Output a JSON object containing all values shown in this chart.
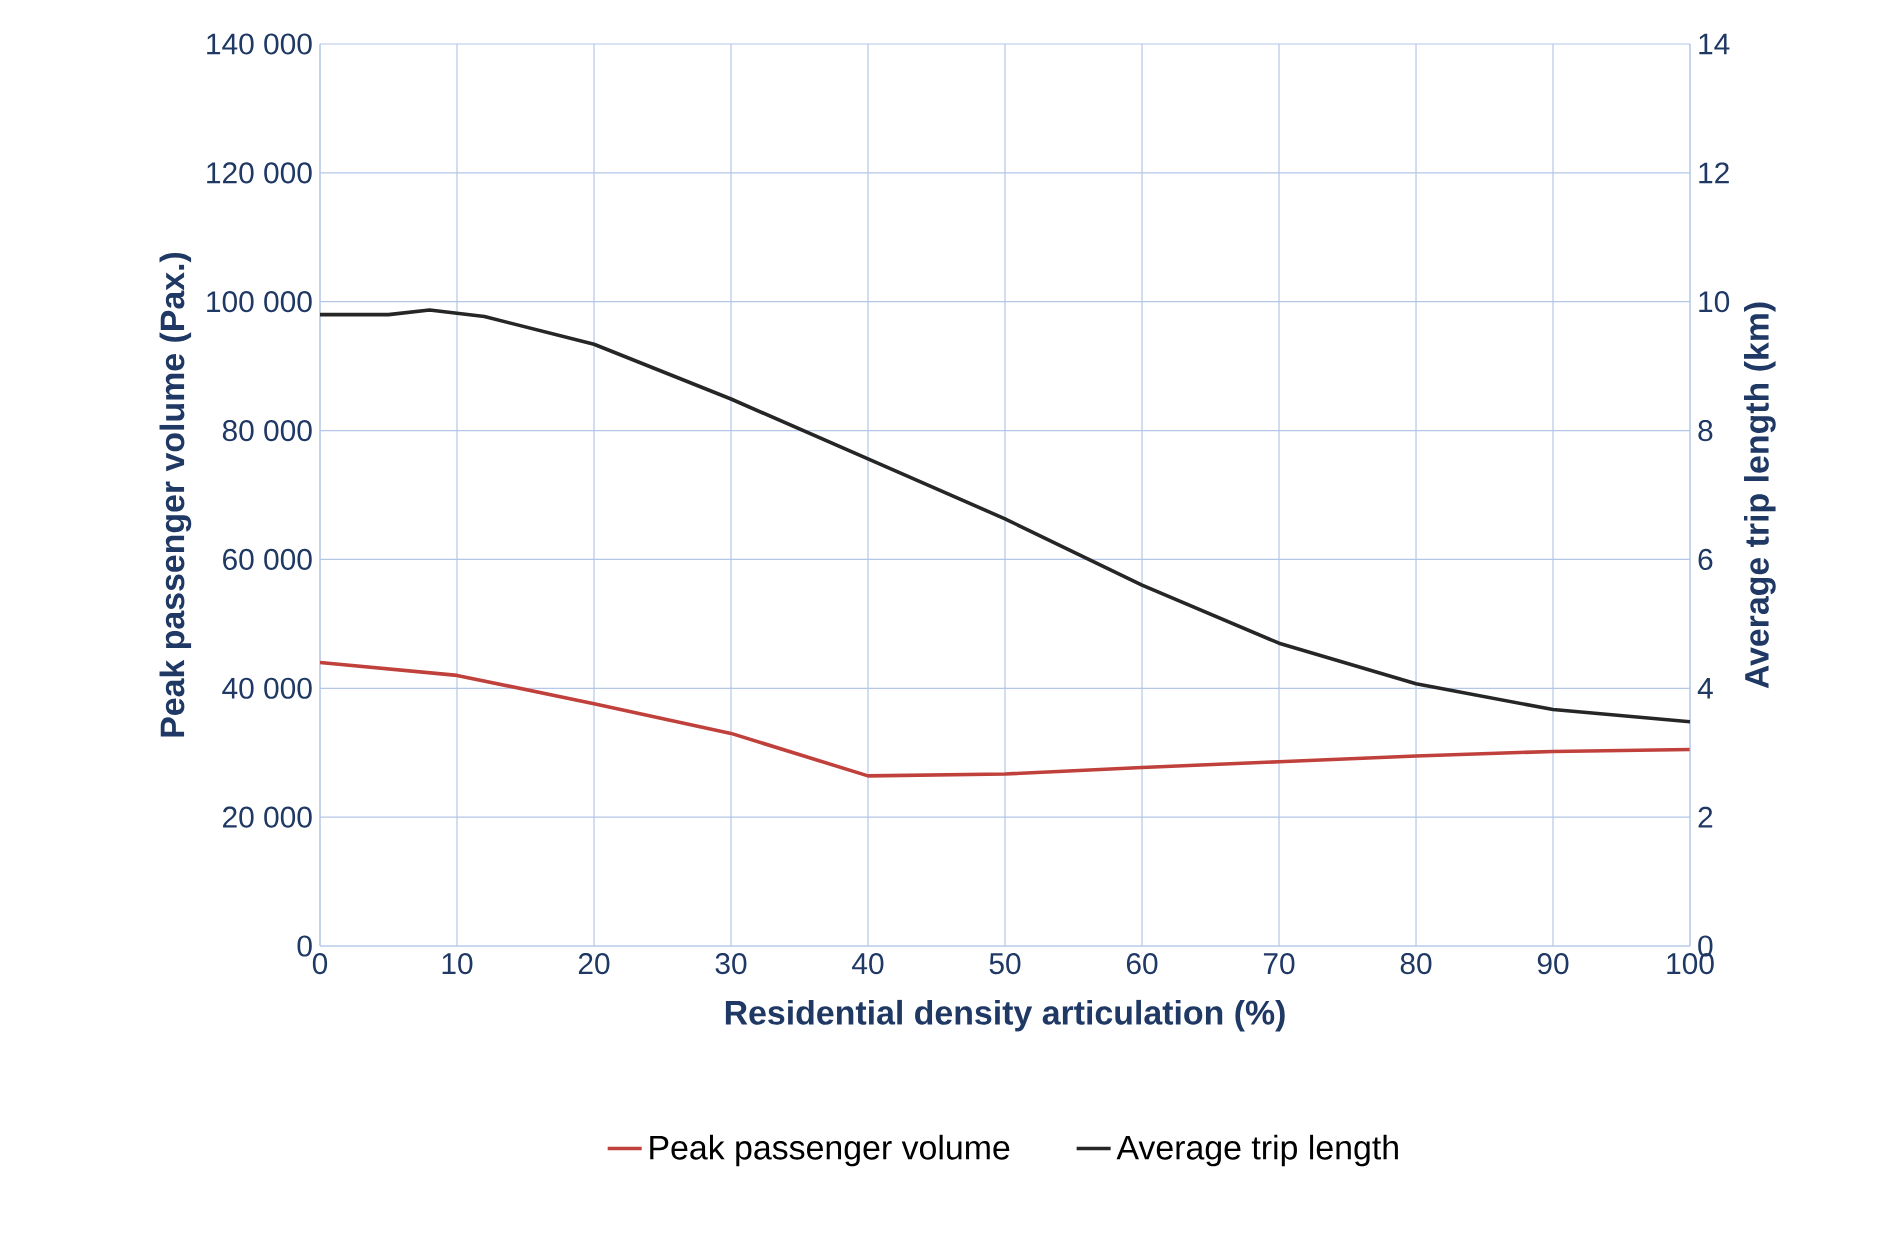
{
  "chart_data": {
    "type": "line",
    "xlabel": "Residential density articulation (%)",
    "ylabel": "Peak passenger volume (Pax.)",
    "y2label": "Average trip length (km)",
    "x": [
      0,
      10,
      20,
      30,
      40,
      50,
      60,
      70,
      80,
      90,
      100
    ],
    "xlim": [
      0,
      100
    ],
    "xticks": [
      0,
      10,
      20,
      30,
      40,
      50,
      60,
      70,
      80,
      90,
      100
    ],
    "ylim": [
      0,
      140000
    ],
    "yticks": [
      {
        "value": 0,
        "label": "0"
      },
      {
        "value": 20000,
        "label": "20 000"
      },
      {
        "value": 40000,
        "label": "40 000"
      },
      {
        "value": 60000,
        "label": "60 000"
      },
      {
        "value": 80000,
        "label": "80 000"
      },
      {
        "value": 100000,
        "label": "100 000"
      },
      {
        "value": 120000,
        "label": "120 000"
      },
      {
        "value": 140000,
        "label": "140 000"
      }
    ],
    "y2lim": [
      0,
      14
    ],
    "y2ticks": [
      0,
      2,
      4,
      6,
      8,
      10,
      12,
      14
    ],
    "grid": true,
    "legend": "bottom",
    "series": [
      {
        "name": "Peak passenger volume",
        "color": "#c0403c",
        "values": [
          44000,
          42000,
          37600,
          33000,
          26400,
          26700,
          27700,
          28600,
          29500,
          30200,
          30500
        ]
      },
      {
        "name": "Average trip length",
        "color": "#262626",
        "axis": "y2",
        "x": [
          0,
          5,
          8,
          12,
          20,
          30,
          40,
          50,
          60,
          70,
          80,
          90,
          100
        ],
        "values": [
          9.8,
          9.8,
          9.87,
          9.77,
          9.34,
          8.49,
          7.56,
          6.63,
          5.6,
          4.7,
          4.07,
          3.67,
          3.48
        ]
      }
    ]
  }
}
